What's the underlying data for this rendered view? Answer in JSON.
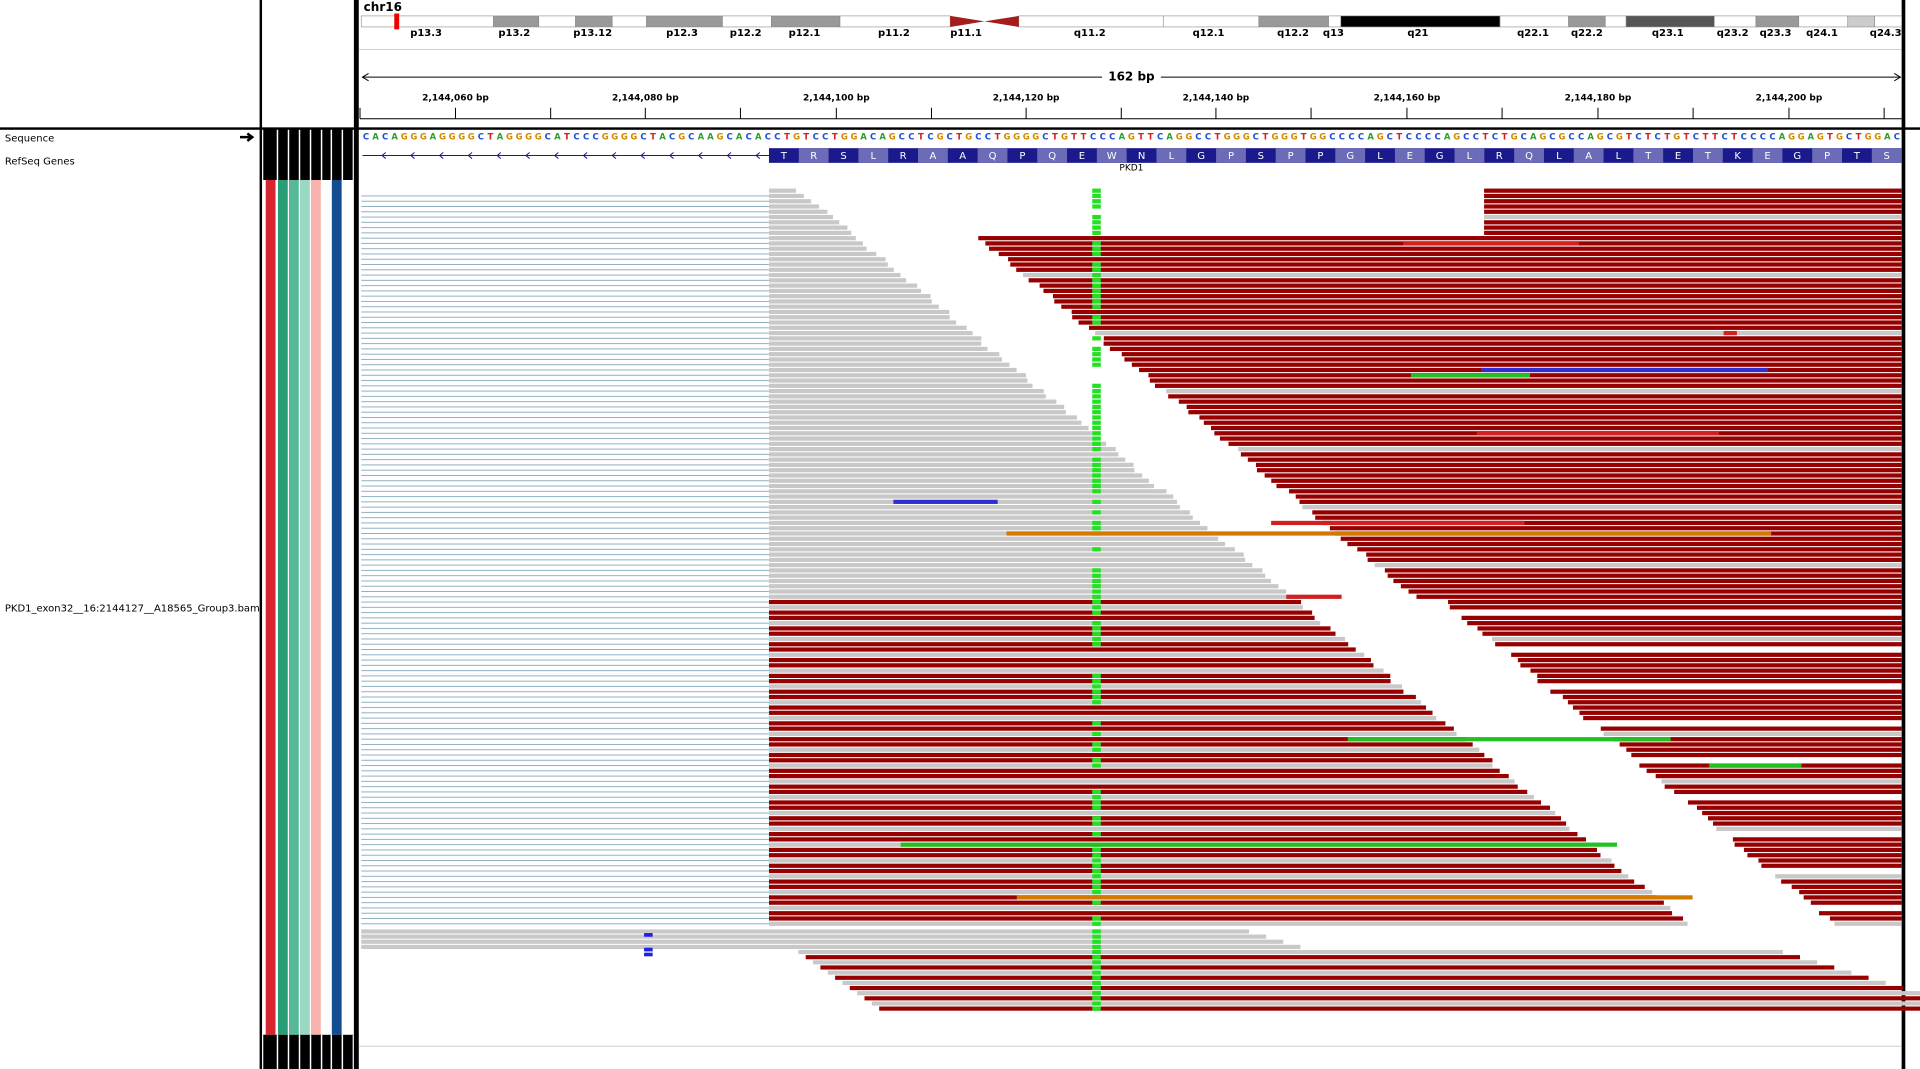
{
  "ideogram": {
    "chromosome": "chr16",
    "bands": [
      "p13.3",
      "p13.2",
      "p13.12",
      "p12.3",
      "p12.2",
      "p12.1",
      "p11.2",
      "p11.1",
      "q11.2",
      "q12.1",
      "q12.2",
      "q13",
      "q21",
      "q22.1",
      "q22.2",
      "q23.1",
      "q23.2",
      "q23.3",
      "q24.1",
      "q24.3"
    ]
  },
  "ruler": {
    "span": "162 bp",
    "ticks": [
      "2,144,060 bp",
      "2,144,080 bp",
      "2,144,100 bp",
      "2,144,120 bp",
      "2,144,140 bp",
      "2,144,160 bp",
      "2,144,180 bp",
      "2,144,200 bp"
    ]
  },
  "tracks": {
    "sequence_label": "Sequence",
    "genes_label": "RefSeq Genes",
    "alignment_label": "PKD1_exon32__16:2144127__A18565_Group3.bam"
  },
  "sequence": {
    "bases": "CACAGGGAGGGGCTAGGGGCATCCCGGGGCTACGCAAGCACACCTGTCCTGGACAGCCTCGCTGCCTGGGGCTGTTCCCAGTTCAGGCCTGGGCTGGGTGGCCCCAGCTCCCCAGCCTCTGCAGCGCCAGCGTCTCTGTCTTCTCCCCAGGAGTGCTGGAC"
  },
  "gene": {
    "name": "PKD1",
    "amino_acids": "TRSLRAAQPQEWNLGPSPPGLEGLRQLALTETKEGPTS"
  }
}
